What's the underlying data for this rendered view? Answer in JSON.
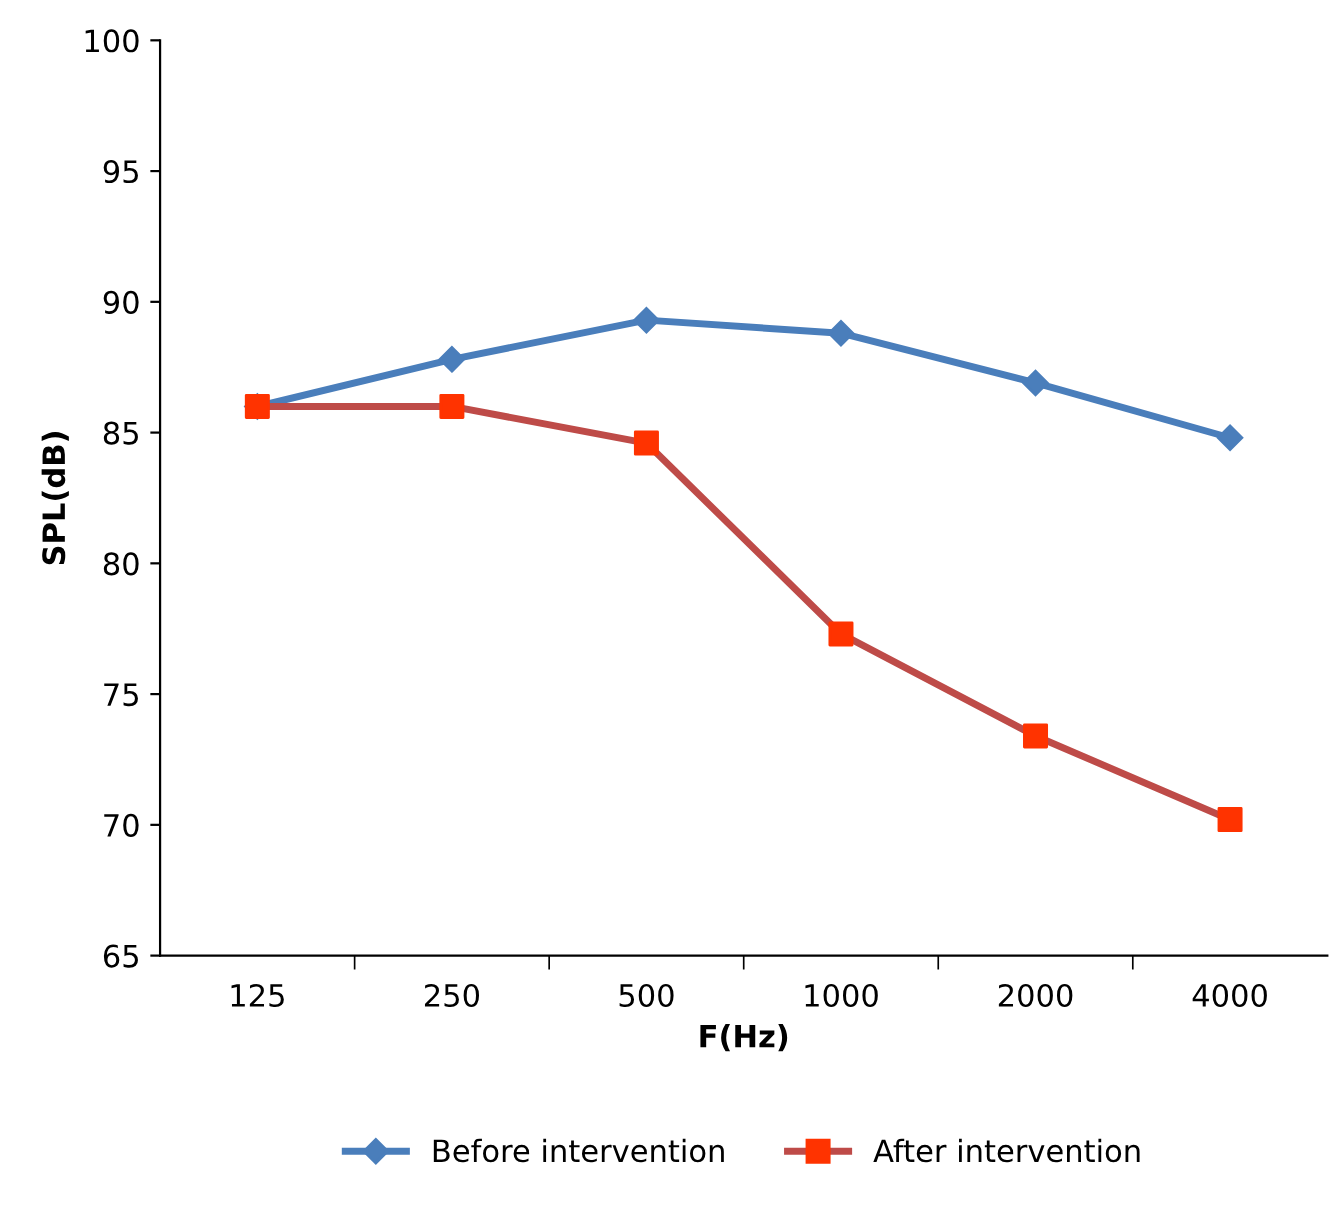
{
  "chart_data": {
    "type": "line",
    "xlabel": "F(Hz)",
    "ylabel": "SPL(dB)",
    "categories": [
      "125",
      "250",
      "500",
      "1000",
      "2000",
      "4000"
    ],
    "ylim": [
      65,
      100
    ],
    "yticks": [
      65,
      70,
      75,
      80,
      85,
      90,
      95,
      100
    ],
    "grid": false,
    "legend": "bottom",
    "series": [
      {
        "name": "Before intervention",
        "color": "#4a7ebb",
        "marker": "diamond",
        "values": [
          86.0,
          87.8,
          89.3,
          88.8,
          86.9,
          84.8
        ]
      },
      {
        "name": "After intervention",
        "color": "#be4b48",
        "colors": [
          "#ff3300",
          "#ff3300",
          "#ff3300",
          "#ff3300",
          "#ff3300",
          "#ff3300"
        ],
        "marker": "square",
        "values": [
          86.0,
          86.0,
          84.6,
          77.3,
          73.4,
          70.2
        ]
      }
    ]
  }
}
